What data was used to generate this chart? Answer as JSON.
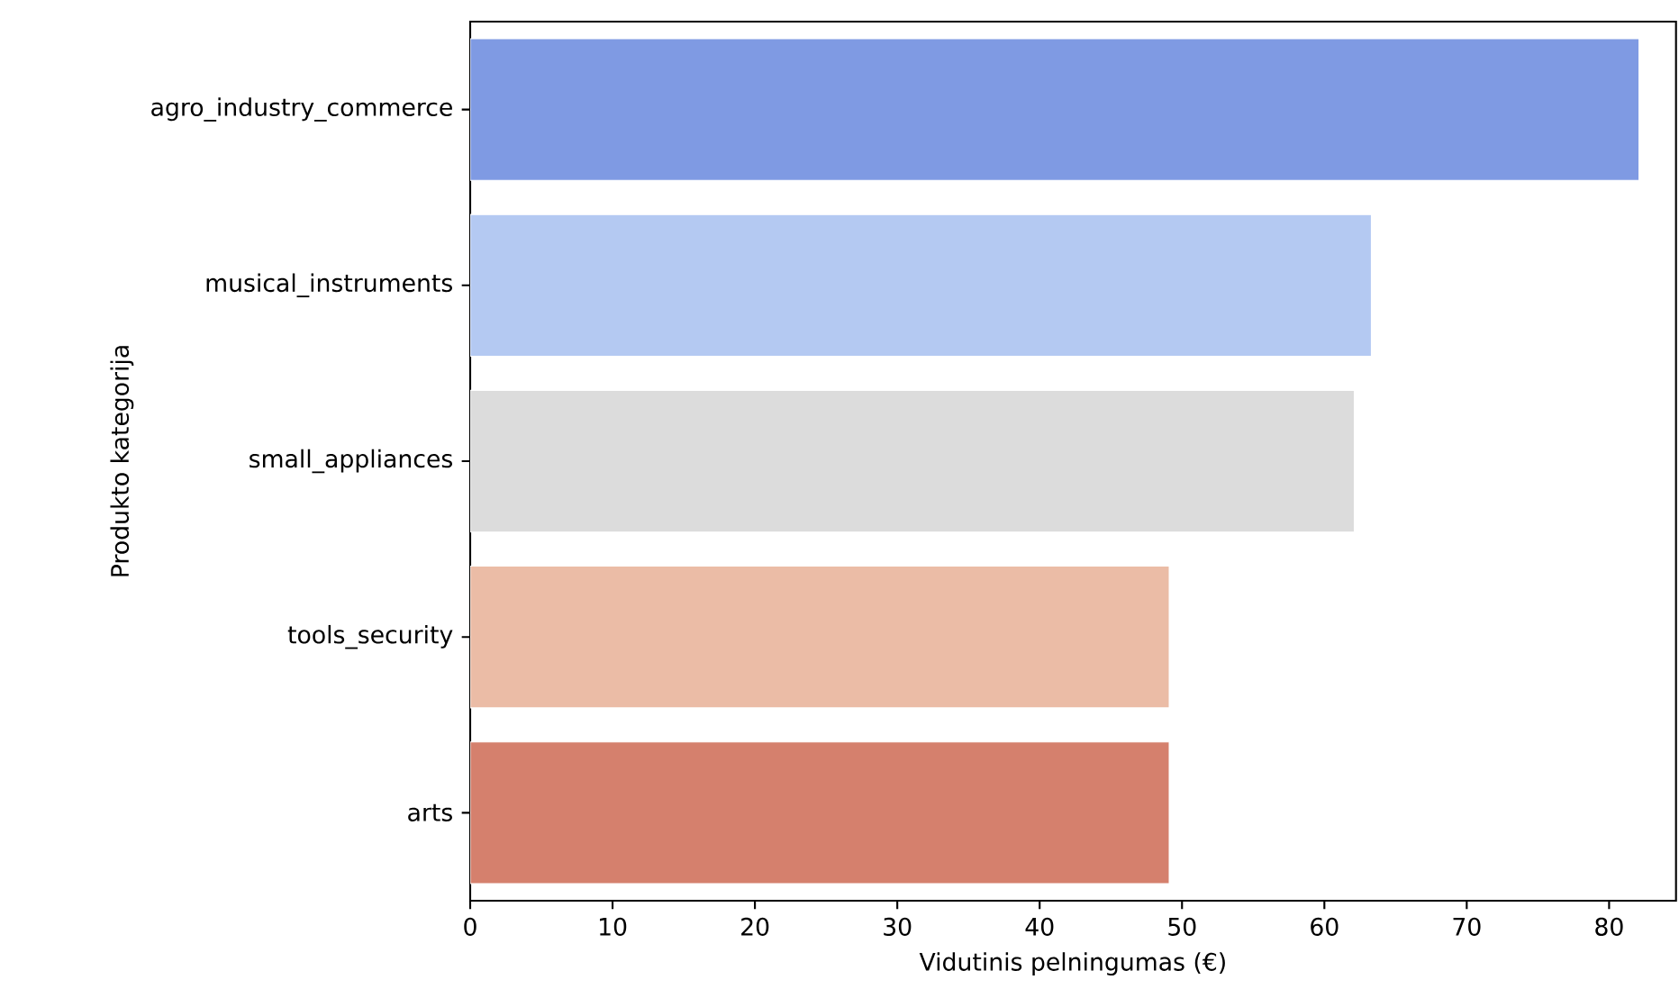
{
  "chart_data": {
    "type": "bar",
    "orientation": "horizontal",
    "xlabel": "Vidutinis pelningumas (€)",
    "ylabel": "Produkto kategorija",
    "categories": [
      "agro_industry_commerce",
      "musical_instruments",
      "small_appliances",
      "tools_security",
      "arts"
    ],
    "values": [
      82.1,
      63.3,
      62.1,
      49.1,
      49.1
    ],
    "colors": [
      "#7f9ae3",
      "#b4c9f2",
      "#dcdcdc",
      "#ebbca6",
      "#d5806d"
    ],
    "xlim": [
      0,
      84.7
    ],
    "xticks": [
      0,
      10,
      20,
      30,
      40,
      50,
      60,
      70,
      80
    ],
    "grid": false
  }
}
